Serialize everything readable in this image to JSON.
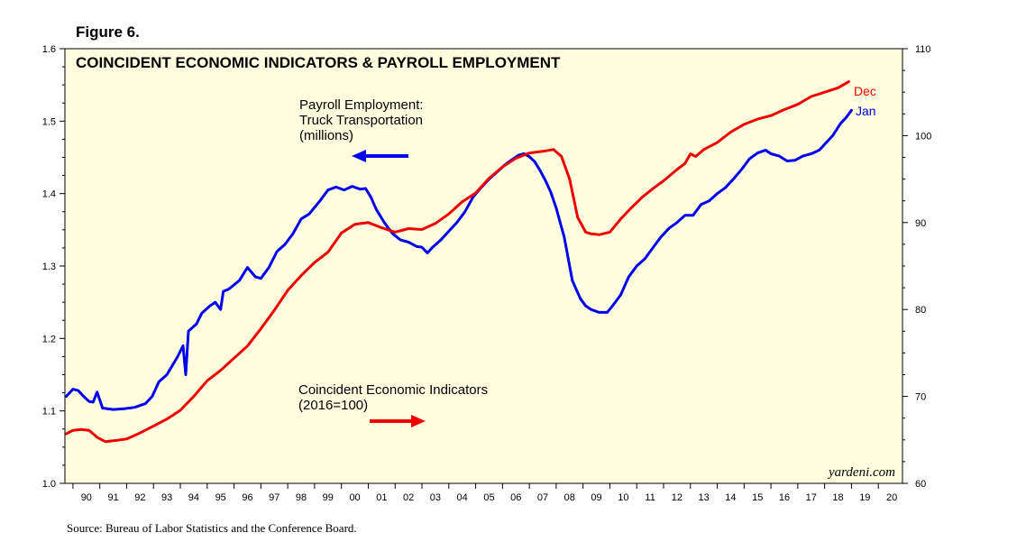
{
  "figure_label": "Figure 6.",
  "source": "Source: Bureau of Labor Statistics and the Conference Board.",
  "chart_data": {
    "type": "line",
    "title": "COINCIDENT ECONOMIC INDICATORS & PAYROLL EMPLOYMENT",
    "watermark": "yardeni.com",
    "x_range": [
      1989.7,
      2020.9
    ],
    "x_ticks": [
      "90",
      "91",
      "92",
      "93",
      "94",
      "95",
      "96",
      "97",
      "98",
      "99",
      "00",
      "01",
      "02",
      "03",
      "04",
      "05",
      "06",
      "07",
      "08",
      "09",
      "10",
      "11",
      "12",
      "13",
      "14",
      "15",
      "16",
      "17",
      "18",
      "19",
      "20"
    ],
    "left_axis": {
      "ylim": [
        1.0,
        1.6
      ],
      "ticks": [
        "1.0",
        "1.1",
        "1.2",
        "1.3",
        "1.4",
        "1.5",
        "1.6"
      ]
    },
    "right_axis": {
      "ylim": [
        60,
        110
      ],
      "ticks": [
        "60",
        "70",
        "80",
        "90",
        "100",
        "110"
      ]
    },
    "background": "#ffffe0",
    "series": [
      {
        "name": "Payroll Employment: Truck Transportation",
        "axis": "left",
        "color": "#0000ee",
        "end_label": "Jan",
        "annotation": [
          "Payroll Employment:",
          "Truck Transportation",
          "(millions)"
        ],
        "x": [
          1989.75,
          1990.0,
          1990.2,
          1990.4,
          1990.6,
          1990.75,
          1990.9,
          1991.1,
          1991.5,
          1991.9,
          1992.3,
          1992.7,
          1992.95,
          1993.2,
          1993.5,
          1993.9,
          1994.1,
          1994.2,
          1994.3,
          1994.6,
          1994.8,
          1995.1,
          1995.3,
          1995.5,
          1995.6,
          1995.8,
          1996.2,
          1996.5,
          1996.8,
          1997.0,
          1997.3,
          1997.6,
          1997.9,
          1998.2,
          1998.5,
          1998.8,
          1999.2,
          1999.5,
          1999.8,
          2000.1,
          2000.4,
          2000.7,
          2000.9,
          2001.1,
          2001.3,
          2001.6,
          2001.9,
          2002.2,
          2002.5,
          2002.8,
          2003.0,
          2003.2,
          2003.4,
          2003.7,
          2004.0,
          2004.3,
          2004.6,
          2004.9,
          2005.2,
          2005.5,
          2005.8,
          2006.1,
          2006.4,
          2006.6,
          2006.8,
          2007.0,
          2007.2,
          2007.4,
          2007.6,
          2007.8,
          2008.0,
          2008.3,
          2008.6,
          2008.9,
          2009.1,
          2009.3,
          2009.6,
          2009.9,
          2010.1,
          2010.4,
          2010.7,
          2011.0,
          2011.3,
          2011.6,
          2011.9,
          2012.2,
          2012.5,
          2012.8,
          2013.1,
          2013.4,
          2013.7,
          2014.0,
          2014.3,
          2014.6,
          2014.9,
          2015.2,
          2015.5,
          2015.8,
          2016.0,
          2016.3,
          2016.6,
          2016.9,
          2017.2,
          2017.5,
          2017.8,
          2018.0,
          2018.3,
          2018.6,
          2018.8,
          2019.0
        ],
        "y": [
          1.12,
          1.13,
          1.128,
          1.12,
          1.113,
          1.112,
          1.126,
          1.104,
          1.102,
          1.103,
          1.105,
          1.11,
          1.12,
          1.14,
          1.15,
          1.175,
          1.19,
          1.15,
          1.21,
          1.22,
          1.235,
          1.245,
          1.25,
          1.24,
          1.265,
          1.268,
          1.28,
          1.298,
          1.285,
          1.283,
          1.298,
          1.32,
          1.33,
          1.345,
          1.365,
          1.372,
          1.39,
          1.405,
          1.409,
          1.405,
          1.41,
          1.406,
          1.407,
          1.395,
          1.378,
          1.36,
          1.345,
          1.336,
          1.333,
          1.327,
          1.326,
          1.318,
          1.326,
          1.336,
          1.348,
          1.36,
          1.375,
          1.395,
          1.408,
          1.42,
          1.43,
          1.44,
          1.448,
          1.453,
          1.455,
          1.451,
          1.444,
          1.432,
          1.418,
          1.402,
          1.38,
          1.34,
          1.28,
          1.255,
          1.245,
          1.24,
          1.236,
          1.236,
          1.245,
          1.26,
          1.285,
          1.3,
          1.31,
          1.325,
          1.34,
          1.352,
          1.36,
          1.37,
          1.37,
          1.385,
          1.39,
          1.4,
          1.408,
          1.42,
          1.433,
          1.448,
          1.456,
          1.46,
          1.455,
          1.452,
          1.445,
          1.446,
          1.452,
          1.455,
          1.46,
          1.468,
          1.48,
          1.497,
          1.505,
          1.515
        ]
      },
      {
        "name": "Coincident Economic Indicators (2016=100)",
        "axis": "right",
        "color": "#ee0000",
        "end_label": "Dec",
        "annotation": [
          "Coincident Economic Indicators",
          "(2016=100)"
        ],
        "x": [
          1989.75,
          1990.0,
          1990.3,
          1990.6,
          1990.9,
          1991.2,
          1991.5,
          1992.0,
          1992.5,
          1993.0,
          1993.5,
          1994.0,
          1994.5,
          1995.0,
          1995.5,
          1996.0,
          1996.5,
          1997.0,
          1997.5,
          1998.0,
          1998.5,
          1999.0,
          1999.5,
          2000.0,
          2000.5,
          2001.0,
          2001.5,
          2002.0,
          2002.5,
          2003.0,
          2003.5,
          2004.0,
          2004.5,
          2005.0,
          2005.5,
          2006.0,
          2006.5,
          2007.0,
          2007.5,
          2007.9,
          2008.2,
          2008.5,
          2008.8,
          2009.1,
          2009.3,
          2009.6,
          2010.0,
          2010.4,
          2010.8,
          2011.2,
          2011.6,
          2012.0,
          2012.5,
          2012.8,
          2013.0,
          2013.2,
          2013.5,
          2014.0,
          2014.5,
          2015.0,
          2015.5,
          2016.0,
          2016.5,
          2017.0,
          2017.5,
          2018.0,
          2018.5,
          2018.9
        ],
        "y": [
          65.7,
          66.1,
          66.2,
          66.1,
          65.3,
          64.8,
          64.9,
          65.1,
          65.8,
          66.6,
          67.4,
          68.4,
          70.0,
          71.8,
          73.0,
          74.4,
          75.8,
          77.8,
          79.9,
          82.2,
          83.9,
          85.4,
          86.6,
          88.8,
          89.8,
          90.0,
          89.4,
          88.9,
          89.3,
          89.2,
          89.9,
          91.0,
          92.4,
          93.4,
          95.1,
          96.4,
          97.4,
          98.0,
          98.2,
          98.4,
          97.6,
          95.0,
          90.6,
          88.9,
          88.7,
          88.6,
          88.9,
          90.4,
          91.7,
          92.9,
          93.9,
          94.8,
          96.1,
          96.8,
          97.9,
          97.6,
          98.4,
          99.2,
          100.4,
          101.3,
          101.9,
          102.3,
          103.0,
          103.6,
          104.5,
          105.0,
          105.5,
          106.2
        ]
      }
    ]
  }
}
